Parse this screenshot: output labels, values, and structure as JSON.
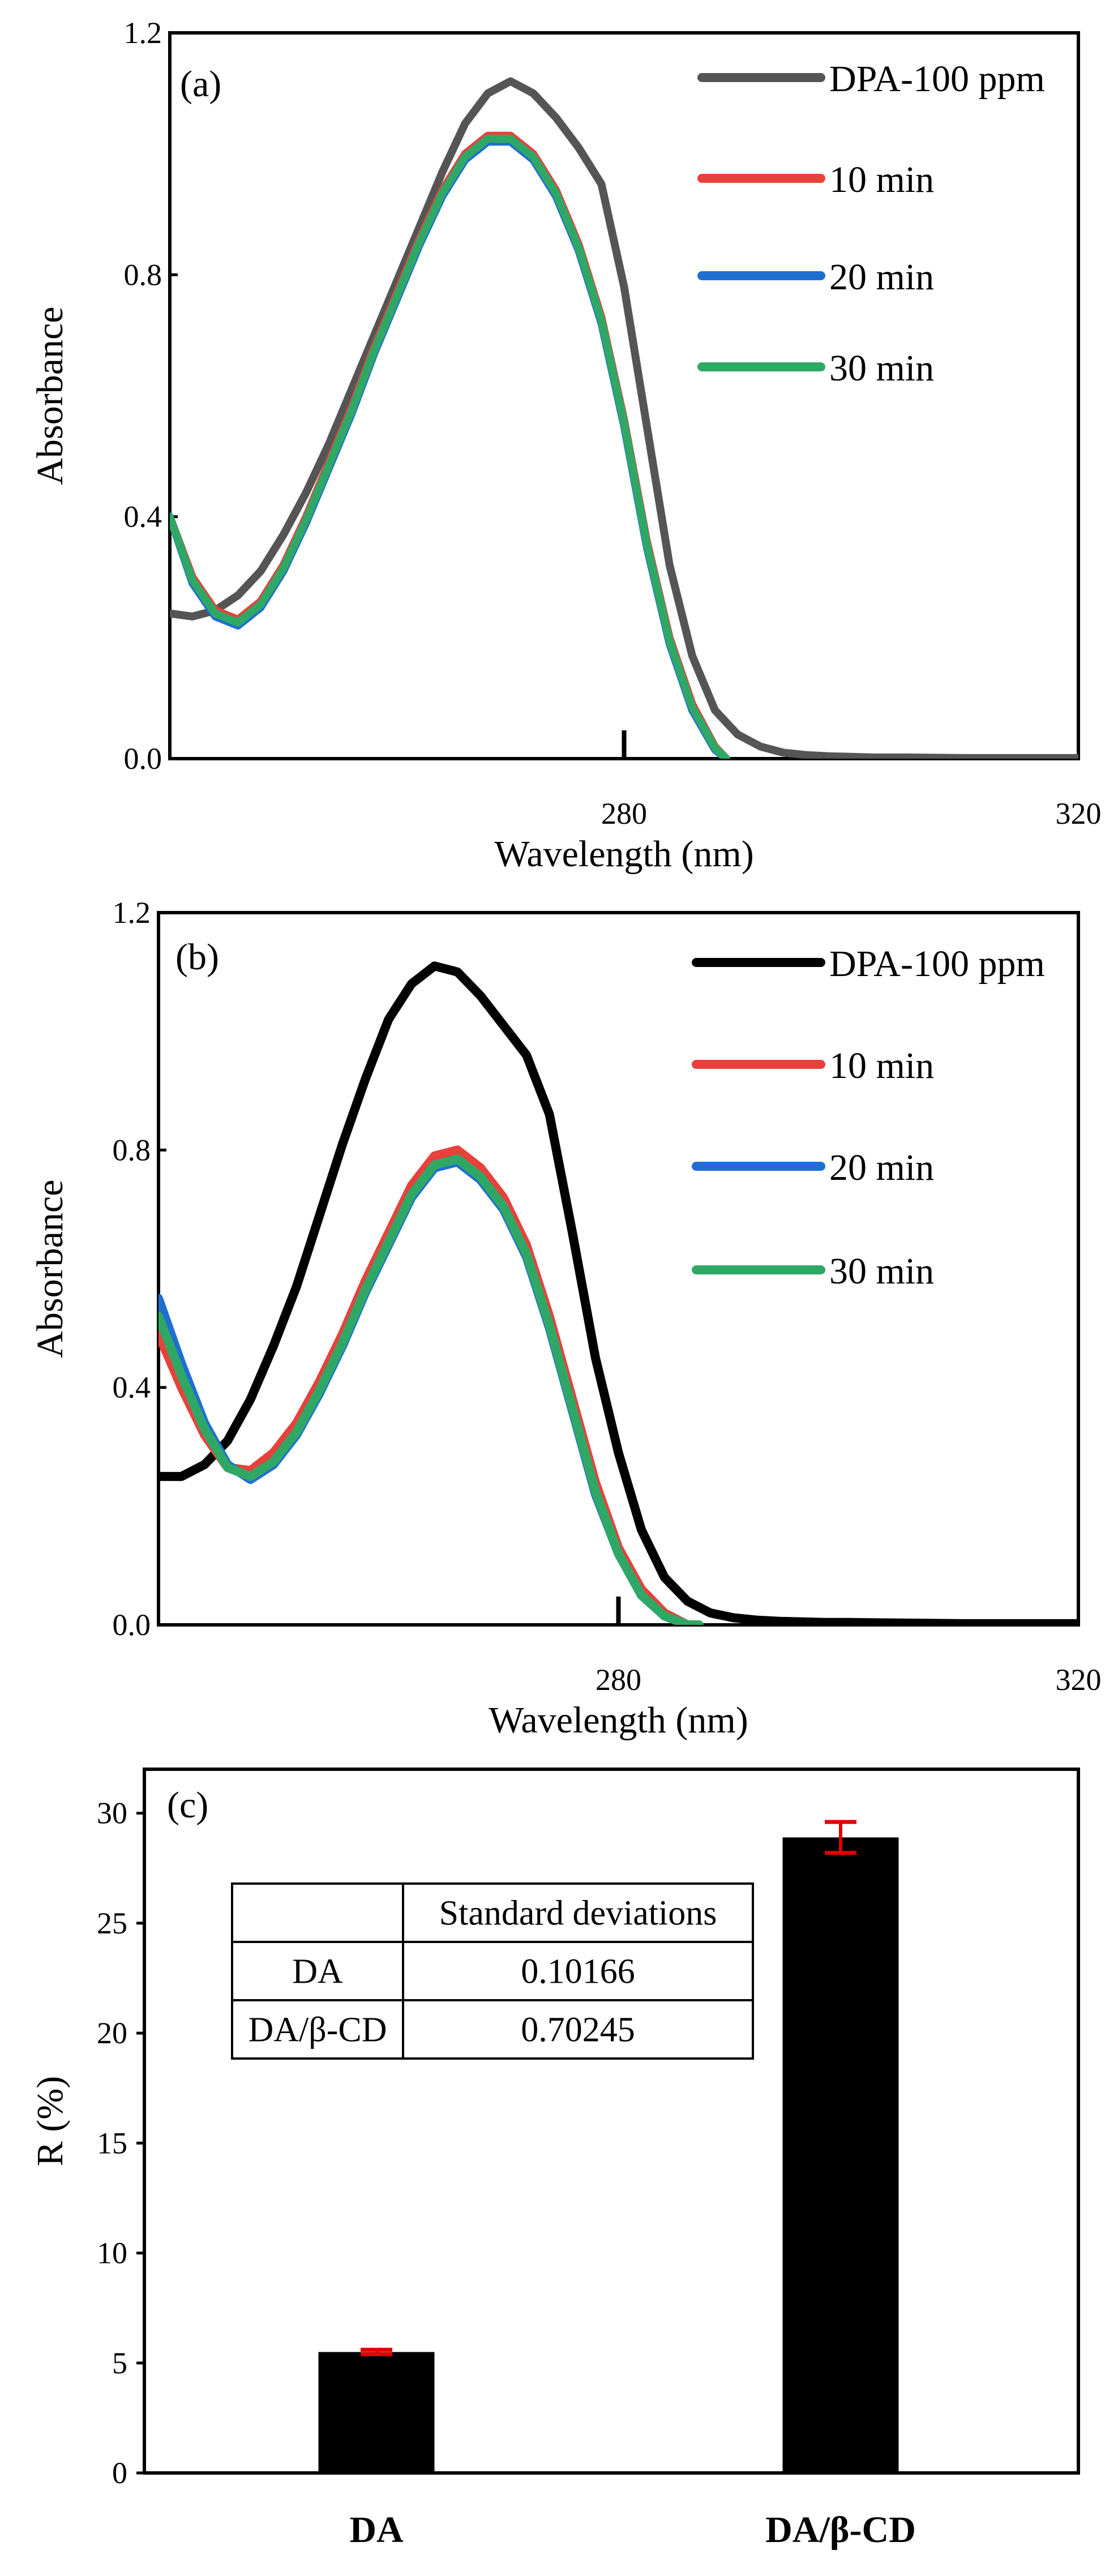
{
  "chart_data": [
    {
      "panel": "(a)",
      "type": "line",
      "xlabel": "Wavelength (nm)",
      "ylabel": "Absorbance",
      "xlim": [
        240,
        320
      ],
      "ylim": [
        0.0,
        1.2
      ],
      "yticks": [
        "0.0",
        "0.4",
        "0.8",
        "1.2"
      ],
      "xticks": [
        280,
        320
      ],
      "xtick_labels": [
        "280",
        "320"
      ],
      "legend_position": "top-right",
      "series": [
        {
          "name": "DPA-100 ppm",
          "color": "#555555",
          "x": [
            240,
            242,
            244,
            246,
            248,
            250,
            252,
            254,
            256,
            258,
            260,
            262,
            264,
            266,
            268,
            270,
            272,
            274,
            276,
            278,
            280,
            282,
            284,
            286,
            288,
            290,
            292,
            294,
            296,
            298,
            300,
            302,
            305,
            310,
            315,
            320
          ],
          "y": [
            0.24,
            0.235,
            0.245,
            0.27,
            0.31,
            0.37,
            0.44,
            0.52,
            0.61,
            0.7,
            0.79,
            0.88,
            0.97,
            1.05,
            1.1,
            1.12,
            1.1,
            1.06,
            1.01,
            0.95,
            0.78,
            0.55,
            0.32,
            0.17,
            0.08,
            0.04,
            0.02,
            0.01,
            0.006,
            0.004,
            0.003,
            0.002,
            0.002,
            0.001,
            0.001,
            0.001
          ]
        },
        {
          "name": "10 min",
          "color": "#e8413c",
          "x": [
            240,
            242,
            244,
            246,
            248,
            250,
            252,
            254,
            256,
            258,
            260,
            262,
            264,
            266,
            268,
            270,
            272,
            274,
            276,
            278,
            280,
            282,
            284,
            286,
            288,
            289
          ],
          "y": [
            0.4,
            0.3,
            0.245,
            0.23,
            0.26,
            0.32,
            0.4,
            0.49,
            0.58,
            0.68,
            0.77,
            0.86,
            0.94,
            1.0,
            1.03,
            1.03,
            1.0,
            0.94,
            0.85,
            0.73,
            0.56,
            0.36,
            0.2,
            0.09,
            0.02,
            0.0
          ]
        },
        {
          "name": "20 min",
          "color": "#1f6fd1",
          "x": [
            240,
            242,
            244,
            246,
            248,
            250,
            252,
            254,
            256,
            258,
            260,
            262,
            264,
            266,
            268,
            270,
            272,
            274,
            276,
            278,
            280,
            282,
            284,
            286,
            288,
            289
          ],
          "y": [
            0.4,
            0.29,
            0.235,
            0.22,
            0.25,
            0.31,
            0.39,
            0.48,
            0.57,
            0.67,
            0.76,
            0.85,
            0.93,
            0.99,
            1.02,
            1.02,
            0.99,
            0.93,
            0.84,
            0.72,
            0.55,
            0.35,
            0.19,
            0.08,
            0.015,
            0.0
          ]
        },
        {
          "name": "30 min",
          "color": "#2fa866",
          "x": [
            240,
            242,
            244,
            246,
            248,
            250,
            252,
            254,
            256,
            258,
            260,
            262,
            264,
            266,
            268,
            270,
            272,
            274,
            276,
            278,
            280,
            282,
            284,
            286,
            288,
            289
          ],
          "y": [
            0.4,
            0.295,
            0.24,
            0.225,
            0.255,
            0.315,
            0.395,
            0.485,
            0.575,
            0.675,
            0.765,
            0.855,
            0.935,
            0.995,
            1.025,
            1.025,
            0.995,
            0.935,
            0.845,
            0.725,
            0.555,
            0.355,
            0.195,
            0.085,
            0.018,
            0.0
          ]
        }
      ]
    },
    {
      "panel": "(b)",
      "type": "line",
      "xlabel": "Wavelength (nm)",
      "ylabel": "Absorbance",
      "xlim": [
        240,
        320
      ],
      "ylim": [
        0.0,
        1.2
      ],
      "yticks": [
        "0.0",
        "0.4",
        "0.8",
        "1.2"
      ],
      "xticks": [
        280,
        320
      ],
      "xtick_labels": [
        "280",
        "320"
      ],
      "legend_position": "top-right",
      "series": [
        {
          "name": "DPA-100 ppm",
          "color": "#000000",
          "x": [
            240,
            242,
            244,
            246,
            248,
            250,
            252,
            254,
            256,
            258,
            260,
            262,
            264,
            266,
            268,
            270,
            272,
            274,
            276,
            278,
            280,
            282,
            284,
            286,
            288,
            290,
            292,
            294,
            296,
            298,
            300,
            305,
            310,
            315,
            320
          ],
          "y": [
            0.25,
            0.25,
            0.27,
            0.31,
            0.38,
            0.47,
            0.57,
            0.69,
            0.81,
            0.92,
            1.02,
            1.08,
            1.11,
            1.1,
            1.06,
            1.01,
            0.96,
            0.86,
            0.66,
            0.45,
            0.29,
            0.16,
            0.08,
            0.04,
            0.02,
            0.012,
            0.008,
            0.006,
            0.005,
            0.004,
            0.004,
            0.003,
            0.002,
            0.002,
            0.002
          ]
        },
        {
          "name": "10 min",
          "color": "#e8413c",
          "x": [
            240,
            242,
            244,
            246,
            248,
            250,
            252,
            254,
            256,
            258,
            260,
            262,
            264,
            266,
            268,
            270,
            272,
            274,
            276,
            278,
            280,
            282,
            284,
            286,
            287
          ],
          "y": [
            0.49,
            0.4,
            0.32,
            0.265,
            0.26,
            0.29,
            0.34,
            0.41,
            0.49,
            0.58,
            0.66,
            0.74,
            0.79,
            0.8,
            0.77,
            0.72,
            0.64,
            0.52,
            0.38,
            0.24,
            0.13,
            0.06,
            0.02,
            0.0,
            0.0
          ]
        },
        {
          "name": "20 min",
          "color": "#1f6fd1",
          "x": [
            240,
            242,
            244,
            246,
            248,
            250,
            252,
            254,
            256,
            258,
            260,
            262,
            264,
            266,
            268,
            270,
            272,
            274,
            276,
            278,
            280,
            282,
            284,
            286,
            287
          ],
          "y": [
            0.55,
            0.44,
            0.34,
            0.27,
            0.245,
            0.27,
            0.32,
            0.39,
            0.47,
            0.56,
            0.64,
            0.72,
            0.77,
            0.78,
            0.75,
            0.7,
            0.62,
            0.5,
            0.36,
            0.22,
            0.12,
            0.05,
            0.015,
            0.0,
            0.0
          ]
        },
        {
          "name": "30 min",
          "color": "#2fa866",
          "x": [
            240,
            242,
            244,
            246,
            248,
            250,
            252,
            254,
            256,
            258,
            260,
            262,
            264,
            266,
            268,
            270,
            272,
            274,
            276,
            278,
            280,
            282,
            284,
            286,
            287
          ],
          "y": [
            0.52,
            0.42,
            0.33,
            0.265,
            0.25,
            0.275,
            0.325,
            0.395,
            0.475,
            0.565,
            0.645,
            0.725,
            0.775,
            0.785,
            0.755,
            0.705,
            0.625,
            0.505,
            0.365,
            0.225,
            0.12,
            0.05,
            0.015,
            0.0,
            0.0
          ]
        }
      ]
    },
    {
      "panel": "(c)",
      "type": "bar",
      "ylabel": "R (%)",
      "ylim": [
        0,
        32
      ],
      "yticks": [
        "0",
        "5",
        "10",
        "15",
        "20",
        "25",
        "30"
      ],
      "categories": [
        "DA",
        "DA/β-CD"
      ],
      "values": [
        5.5,
        28.9
      ],
      "errors": [
        0.10166,
        0.70245
      ],
      "bar_color": "#000000",
      "error_color": "#e00000",
      "table": {
        "header": [
          "",
          "Standard deviations"
        ],
        "rows": [
          [
            "DA",
            "0.10166"
          ],
          [
            "DA/β-CD",
            "0.70245"
          ]
        ]
      }
    }
  ]
}
